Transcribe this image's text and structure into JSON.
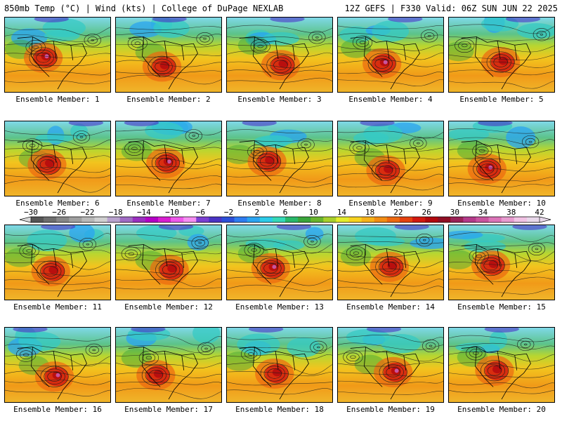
{
  "header": {
    "left": "850mb Temp (°C) | Wind (kts) | College of DuPage NEXLAB",
    "right": "12Z GEFS | F330 Valid: 06Z SUN JUN 22 2025"
  },
  "colorbar": {
    "labels": [
      "−30",
      "−26",
      "−22",
      "−18",
      "−14",
      "−10",
      "−6",
      "−2",
      "2",
      "6",
      "10",
      "14",
      "18",
      "22",
      "26",
      "30",
      "34",
      "38",
      "42"
    ],
    "values": [
      -30,
      -26,
      -22,
      -18,
      -14,
      -10,
      -6,
      -2,
      2,
      6,
      10,
      14,
      18,
      22,
      26,
      30,
      34,
      38,
      42
    ],
    "colors": [
      "#565656",
      "#6e6e6e",
      "#878787",
      "#a0a0a0",
      "#b9b9b9",
      "#d0d0d0",
      "#b9a3ce",
      "#a06bc4",
      "#9a2fbf",
      "#b400c6",
      "#d81ed0",
      "#ee58ea",
      "#f58ef2",
      "#7a3fd2",
      "#4a33c4",
      "#2c4fd8",
      "#2f7cf0",
      "#2aa4f2",
      "#2ccbe8",
      "#35d9b8",
      "#29b86a",
      "#3aa53a",
      "#6ab52c",
      "#a8cf2c",
      "#e4ec2c",
      "#f7d21f",
      "#f6b21a",
      "#f28d14",
      "#ed6810",
      "#e5410e",
      "#d2190f",
      "#b2080e",
      "#8f0e24",
      "#9b2257",
      "#b43a8a",
      "#c9549e",
      "#dc74b8",
      "#e79bcf",
      "#f1c2e4",
      "#e8d8ea"
    ]
  },
  "panels": [
    {
      "label": "Ensemble Member: 1"
    },
    {
      "label": "Ensemble Member: 2"
    },
    {
      "label": "Ensemble Member: 3"
    },
    {
      "label": "Ensemble Member: 4"
    },
    {
      "label": "Ensemble Member: 5"
    },
    {
      "label": "Ensemble Member: 6"
    },
    {
      "label": "Ensemble Member: 7"
    },
    {
      "label": "Ensemble Member: 8"
    },
    {
      "label": "Ensemble Member: 9"
    },
    {
      "label": "Ensemble Member: 10"
    },
    {
      "label": "Ensemble Member: 11"
    },
    {
      "label": "Ensemble Member: 12"
    },
    {
      "label": "Ensemble Member: 13"
    },
    {
      "label": "Ensemble Member: 14"
    },
    {
      "label": "Ensemble Member: 15"
    },
    {
      "label": "Ensemble Member: 16"
    },
    {
      "label": "Ensemble Member: 17"
    },
    {
      "label": "Ensemble Member: 18"
    },
    {
      "label": "Ensemble Member: 19"
    },
    {
      "label": "Ensemble Member: 20"
    }
  ]
}
